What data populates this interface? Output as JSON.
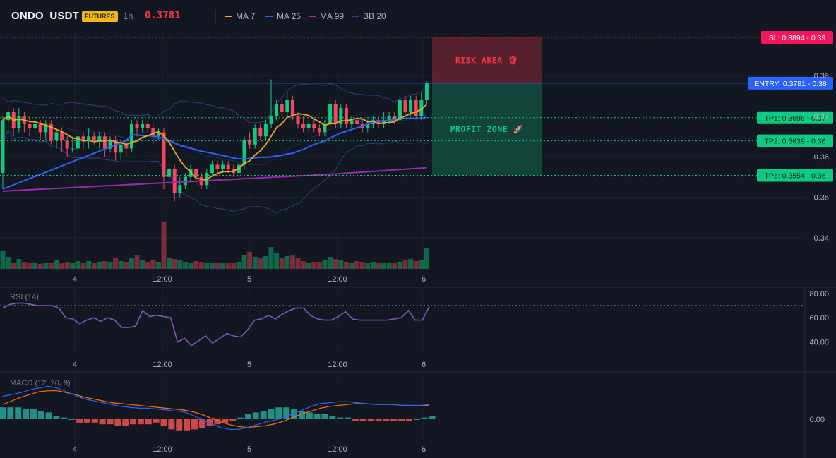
{
  "header": {
    "symbol": "ONDO_USDT",
    "badge": "FUTURES",
    "timeframe": "1h",
    "last_price": "0.3781",
    "indicators": [
      {
        "label": "MA 7",
        "color": "#f5a623"
      },
      {
        "label": "MA 25",
        "color": "#2962ff"
      },
      {
        "label": "MA 99",
        "color": "#9c27b0"
      },
      {
        "label": "BB 20",
        "color": "#2a3f8f"
      }
    ]
  },
  "colors": {
    "up": "#0ecb81",
    "down": "#f6465d",
    "bg": "#131722",
    "ma7": "#f5a623",
    "ma25": "#2962ff",
    "ma99": "#9c27b0",
    "bb": "#2f4a9e",
    "rsi": "#7e57c2",
    "macd": "#2962ff",
    "signal": "#ff6d00"
  },
  "chart_data": [
    {
      "type": "candlestick",
      "price_axis_ticks": [
        "0.38",
        "0.37",
        "0.36",
        "0.35",
        "0.34"
      ],
      "x_ticks": [
        "4",
        "12:00",
        "5",
        "12:00",
        "6"
      ],
      "levels": [
        {
          "name": "SL",
          "label": "SL: 0.3894 - 0.39",
          "value": 0.3894,
          "color": "#f6165d"
        },
        {
          "name": "ENTRY",
          "label": "ENTRY: 0.3781 - 0.38",
          "value": 0.3781,
          "color": "#2962ff"
        },
        {
          "name": "TP1",
          "label": "TP1: 0.3696 - 0.37",
          "value": 0.3696,
          "color": "#0ecb81"
        },
        {
          "name": "TP2",
          "label": "TP2: 0.3639 - 0.36",
          "value": 0.3639,
          "color": "#0ecb81"
        },
        {
          "name": "TP3",
          "label": "TP3: 0.3554 - 0.36",
          "value": 0.3554,
          "color": "#0ecb81"
        }
      ],
      "zones": [
        {
          "label": "RISK AREA 🛡",
          "from": 0.3781,
          "to": 0.3894,
          "color": "#f23645"
        },
        {
          "label": "PROFIT ZONE 🚀",
          "from": 0.3554,
          "to": 0.3781,
          "color": "#0ecb81"
        }
      ],
      "candles": [
        [
          0.356,
          0.369,
          0.37,
          0.352
        ],
        [
          0.369,
          0.371,
          0.373,
          0.366
        ],
        [
          0.371,
          0.367,
          0.372,
          0.365
        ],
        [
          0.367,
          0.37,
          0.372,
          0.366
        ],
        [
          0.37,
          0.368,
          0.371,
          0.366
        ],
        [
          0.368,
          0.367,
          0.37,
          0.365
        ],
        [
          0.367,
          0.368,
          0.369,
          0.366
        ],
        [
          0.368,
          0.366,
          0.369,
          0.364
        ],
        [
          0.366,
          0.368,
          0.369,
          0.364
        ],
        [
          0.368,
          0.364,
          0.369,
          0.363
        ],
        [
          0.364,
          0.366,
          0.367,
          0.362
        ],
        [
          0.366,
          0.364,
          0.367,
          0.361
        ],
        [
          0.364,
          0.362,
          0.365,
          0.36
        ],
        [
          0.362,
          0.362,
          0.365,
          0.361
        ],
        [
          0.362,
          0.365,
          0.366,
          0.361
        ],
        [
          0.365,
          0.364,
          0.366,
          0.362
        ],
        [
          0.364,
          0.365,
          0.367,
          0.362
        ],
        [
          0.365,
          0.364,
          0.366,
          0.363
        ],
        [
          0.364,
          0.365,
          0.366,
          0.362
        ],
        [
          0.365,
          0.362,
          0.366,
          0.36
        ],
        [
          0.362,
          0.364,
          0.365,
          0.361
        ],
        [
          0.364,
          0.361,
          0.365,
          0.359
        ],
        [
          0.361,
          0.363,
          0.364,
          0.359
        ],
        [
          0.363,
          0.362,
          0.364,
          0.36
        ],
        [
          0.362,
          0.368,
          0.369,
          0.361
        ],
        [
          0.368,
          0.367,
          0.369,
          0.365
        ],
        [
          0.367,
          0.368,
          0.369,
          0.366
        ],
        [
          0.368,
          0.367,
          0.369,
          0.366
        ],
        [
          0.367,
          0.365,
          0.368,
          0.363
        ],
        [
          0.365,
          0.366,
          0.367,
          0.364
        ],
        [
          0.366,
          0.355,
          0.367,
          0.352
        ],
        [
          0.355,
          0.357,
          0.359,
          0.352
        ],
        [
          0.357,
          0.351,
          0.358,
          0.349
        ],
        [
          0.351,
          0.353,
          0.355,
          0.35
        ],
        [
          0.353,
          0.355,
          0.356,
          0.352
        ],
        [
          0.355,
          0.357,
          0.358,
          0.354
        ],
        [
          0.357,
          0.355,
          0.358,
          0.353
        ],
        [
          0.355,
          0.353,
          0.356,
          0.352
        ],
        [
          0.353,
          0.356,
          0.357,
          0.352
        ],
        [
          0.356,
          0.358,
          0.359,
          0.355
        ],
        [
          0.358,
          0.357,
          0.359,
          0.355
        ],
        [
          0.357,
          0.358,
          0.359,
          0.356
        ],
        [
          0.358,
          0.357,
          0.359,
          0.356
        ],
        [
          0.357,
          0.356,
          0.358,
          0.355
        ],
        [
          0.356,
          0.358,
          0.359,
          0.354
        ],
        [
          0.358,
          0.364,
          0.365,
          0.357
        ],
        [
          0.364,
          0.363,
          0.366,
          0.362
        ],
        [
          0.363,
          0.367,
          0.368,
          0.362
        ],
        [
          0.367,
          0.365,
          0.368,
          0.364
        ],
        [
          0.365,
          0.368,
          0.369,
          0.364
        ],
        [
          0.368,
          0.37,
          0.379,
          0.367
        ],
        [
          0.37,
          0.373,
          0.374,
          0.369
        ],
        [
          0.373,
          0.371,
          0.374,
          0.37
        ],
        [
          0.371,
          0.374,
          0.376,
          0.37
        ],
        [
          0.374,
          0.37,
          0.375,
          0.369
        ],
        [
          0.37,
          0.368,
          0.371,
          0.367
        ],
        [
          0.368,
          0.367,
          0.37,
          0.366
        ],
        [
          0.367,
          0.368,
          0.369,
          0.366
        ],
        [
          0.368,
          0.367,
          0.369,
          0.366
        ],
        [
          0.367,
          0.366,
          0.368,
          0.365
        ],
        [
          0.366,
          0.368,
          0.369,
          0.365
        ],
        [
          0.368,
          0.373,
          0.374,
          0.367
        ],
        [
          0.373,
          0.368,
          0.374,
          0.367
        ],
        [
          0.368,
          0.372,
          0.373,
          0.367
        ],
        [
          0.372,
          0.368,
          0.373,
          0.367
        ],
        [
          0.368,
          0.369,
          0.37,
          0.367
        ],
        [
          0.369,
          0.368,
          0.37,
          0.367
        ],
        [
          0.368,
          0.367,
          0.369,
          0.366
        ],
        [
          0.367,
          0.368,
          0.369,
          0.366
        ],
        [
          0.368,
          0.369,
          0.37,
          0.367
        ],
        [
          0.369,
          0.368,
          0.37,
          0.367
        ],
        [
          0.368,
          0.369,
          0.371,
          0.367
        ],
        [
          0.369,
          0.37,
          0.371,
          0.368
        ],
        [
          0.37,
          0.369,
          0.371,
          0.368
        ],
        [
          0.369,
          0.374,
          0.375,
          0.368
        ],
        [
          0.374,
          0.371,
          0.375,
          0.37
        ],
        [
          0.371,
          0.374,
          0.375,
          0.37
        ],
        [
          0.374,
          0.37,
          0.375,
          0.369
        ],
        [
          0.37,
          0.374,
          0.376,
          0.369
        ],
        [
          0.374,
          0.3781,
          0.3785,
          0.373
        ]
      ],
      "volume": [
        26,
        17,
        9,
        14,
        10,
        8,
        9,
        7,
        9,
        8,
        13,
        9,
        10,
        8,
        11,
        9,
        11,
        8,
        10,
        11,
        10,
        15,
        11,
        10,
        15,
        20,
        12,
        10,
        13,
        10,
        66,
        16,
        14,
        12,
        10,
        9,
        11,
        10,
        9,
        8,
        9,
        9,
        8,
        9,
        10,
        20,
        24,
        17,
        15,
        18,
        31,
        22,
        16,
        18,
        20,
        16,
        11,
        9,
        10,
        10,
        12,
        17,
        14,
        13,
        10,
        9,
        11,
        10,
        9,
        10,
        8,
        9,
        8,
        9,
        10,
        12,
        14,
        11,
        13,
        30
      ],
      "rsi_ticks": [
        "80.00",
        "60.00",
        "40.00"
      ],
      "rsi_title": "RSI (14)",
      "rsi": [
        68,
        71,
        72,
        72,
        71,
        70,
        70,
        70,
        68,
        60,
        59,
        55,
        58,
        60,
        57,
        60,
        58,
        52,
        52,
        53,
        66,
        61,
        62,
        61,
        60,
        40,
        43,
        37,
        41,
        45,
        39,
        43,
        47,
        45,
        44,
        50,
        58,
        59,
        62,
        59,
        63,
        66,
        68,
        68,
        62,
        59,
        58,
        58,
        61,
        65,
        59,
        58,
        58,
        58,
        58,
        58,
        59,
        60,
        66,
        58,
        58,
        69
      ],
      "macd_ticks": [
        "0.00"
      ],
      "macd_title": "MACD (12, 26, 9)",
      "macd": [
        0.0025,
        0.0027,
        0.0029,
        0.0032,
        0.0034,
        0.0036,
        0.0034,
        0.003,
        0.0026,
        0.0022,
        0.002,
        0.0018,
        0.0016,
        0.0014,
        0.0013,
        0.0012,
        0.0012,
        0.0011,
        0.001,
        0.0009,
        0.0008,
        0.0004,
        -0.0001,
        -0.0005,
        -0.0009,
        -0.0011,
        -0.0011,
        -0.0009,
        -0.0006,
        -0.0003,
        -0.0001,
        0.0002,
        0.0006,
        0.001,
        0.0014,
        0.0017,
        0.0018,
        0.0019,
        0.0019,
        0.0018,
        0.0017,
        0.0016,
        0.0016,
        0.0016,
        0.0015,
        0.0015,
        0.0015,
        0.0016
      ],
      "signal": [
        0.0016,
        0.002,
        0.0024,
        0.0027,
        0.003,
        0.0031,
        0.0031,
        0.0029,
        0.0027,
        0.0024,
        0.0022,
        0.002,
        0.0018,
        0.0017,
        0.0016,
        0.0015,
        0.0014,
        0.0013,
        0.0012,
        0.0011,
        0.001,
        0.0008,
        0.0005,
        0.0001,
        -0.0003,
        -0.0006,
        -0.0008,
        -0.0009,
        -0.0008,
        -0.0007,
        -0.0005,
        -0.0002,
        0.0002,
        0.0006,
        0.0009,
        0.0012,
        0.0014,
        0.0015,
        0.0016,
        0.0017,
        0.0017,
        0.0016,
        0.0016,
        0.0016,
        0.0015,
        0.0015,
        0.0015,
        0.0015
      ],
      "hist": [
        7,
        7,
        7,
        6,
        6,
        5,
        4,
        2,
        1,
        0,
        -2,
        -2,
        -2,
        -3,
        -3,
        -4,
        -4,
        -3,
        -3,
        -3,
        -2,
        -4,
        -6,
        -7,
        -7,
        -6,
        -5,
        -4,
        -3,
        -2,
        -1,
        1,
        3,
        4,
        5,
        6,
        7,
        7,
        6,
        5,
        4,
        3,
        3,
        2,
        1,
        1,
        -1,
        -1,
        -1,
        -1,
        -1,
        -1,
        -1,
        -1,
        0,
        1,
        2
      ]
    }
  ]
}
